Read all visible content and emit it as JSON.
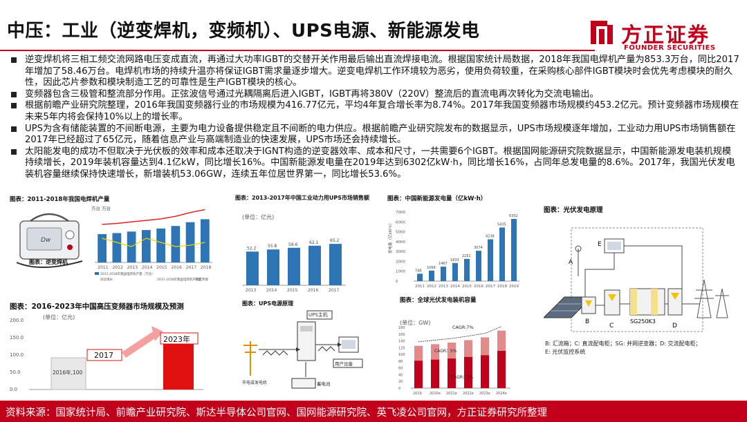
{
  "title": "中压：工业（逆变焊机，变频机）、UPS电源、新能源发电",
  "logo": {
    "cn": "方正证券",
    "en": "FOUNDER SECURITIES"
  },
  "bullets": [
    "逆变焊机将三相工频交流网路电压变成直流，再通过大功率IGBT的交替开关作用最后输出直流焊接电流。根据国家统计局数据，2018年我国电焊机产量为853.3万台，同比2017年增加了58.46万台。电焊机市场的持续升温亦将保证IGBT需求量逐步增大。逆变电焊机工作环境较为恶劣，使用负荷较重，在采购核心部件IGBT模块时会优先考虑模块的耐久性，因此芯片参数和模块制造工艺的可靠性是生产IGBT模块的核心。",
    "变频器包含三极管和整流部分作用。正弦波信号通过光耦隔离后进入IGBT，IGBT再将380V（220V）整流后的直流电再次转化为交流电输出。",
    "根据前瞻产业研究院整理，2016年我国变频器行业的市场规模为416.77亿元，平均4年复合增长率为8.74%。2017年我国变频器市场规模约453.2亿元。预计变频器市场规模在未来5年内将会保持10%以上的增长率。",
    "UPS为含有储能装置的不间断电源，主要为电力设备提供稳定且不间断的电力供应。根据前瞻产业研究院发布的数据显示，UPS市场规模逐年增加，工业动力用UPS市场销售额在2017年已经超过了65亿元，随着信息产业与高端制造业的快速发展，UPS市场还会持续增长。",
    "太阳能发电的成功不但取决于光伏板的效率和成本还取决于IGNT构造的逆变器效率、成本和尺寸，一共需要6个IGBT。根据国网能源研究院数据显示，中国新能源发电装机规模持续增长，2019年装机容量达到4.1亿kW，同比增长16%。中国新能源发电量在2019年达到6302亿kW·h，同比增长16%，占同年总发电量的8.6%。2017年，我国光伏发电装机容量继续保持快速增长，新增装机53.06GW，连续五年位居世界第一，同比增长53.6%。"
  ],
  "fig_welder": {
    "caption": "图表：2011-2018年我国电焊机产量",
    "photo_label": "图表：逆变焊机",
    "unit": "万台  万台",
    "legend": [
      "2011-2018年我国电焊机产量（万台）",
      "同比增长",
      "2011-2018年我国电焊机产量走势图",
      "产量"
    ],
    "years": [
      "2011",
      "2012",
      "2013",
      "2014",
      "2015",
      "2016",
      "2017",
      "2018"
    ],
    "values": [
      560,
      580,
      610,
      640,
      670,
      720,
      794.8,
      853.3
    ]
  },
  "fig_ups_market": {
    "caption": "图表：2013-2017年中国工业动力用UPS市场销售额",
    "unit": "(单位：亿元)",
    "categories": [
      "2013",
      "2014",
      "2015",
      "2016",
      "2017"
    ],
    "values": [
      52.2,
      55.8,
      58.6,
      62.1,
      65.2
    ]
  },
  "fig_newenergy": {
    "caption": "图表：中国新能源发电量（亿kW·h）",
    "ylabel": "发电量（亿kW·h）",
    "categories": [
      "2011",
      "2012",
      "2013",
      "2014",
      "2015",
      "2016",
      "2017",
      "2018",
      "2019"
    ],
    "values": [
      748,
      1066,
      1467,
      1833,
      2251,
      3074,
      4238,
      5435,
      6302
    ],
    "yticks": [
      "0",
      "1000",
      "2000",
      "3000",
      "4000",
      "5000",
      "6000",
      "7000"
    ]
  },
  "fig_pv": {
    "caption": "图表：光伏发电原理",
    "labels": {
      "A": "A",
      "B": "B",
      "C": "C",
      "D": "D",
      "E": "E",
      "sg": "SG250K3"
    },
    "legend_1": "B: 汇流箱；C: 直流配电柜；SG: 并网逆变器；D: 交流配电柜；",
    "legend_2": "E: 光伏监控系统"
  },
  "fig_hv_inverter": {
    "caption": "图表：2016-2023年中国高压变频器市场规模及预测",
    "unit": "(单位：亿元)",
    "yticks": [
      "200.0",
      "150.0",
      "100.0",
      "50.0",
      "0.0"
    ],
    "labels": [
      "2016年,100",
      "2017",
      "2023年"
    ]
  },
  "fig_ups_principle": {
    "caption": "图表：UPS电源原理",
    "labels": {
      "host": "UPS主机",
      "grid": "市电或发电机",
      "user": "用户设备",
      "battery": "蓄电池"
    }
  },
  "fig_pv_global": {
    "caption": "图表：全球光伏发电装机容量",
    "unit": "(单位：GW)",
    "cagr_top": "CAGR:7%",
    "cagr_mid": "CAGR：5%",
    "cagr_low": "CAGR：2%",
    "categories": [
      "2019",
      "2020e",
      "2021e",
      "2022e",
      "2023e",
      "2024e"
    ],
    "values": [
      125,
      130,
      135,
      142,
      150,
      170
    ],
    "yticks": [
      "180",
      "160",
      "140",
      "120",
      "100",
      "80",
      "60",
      "40",
      "20",
      "0"
    ]
  },
  "footer": "资料来源：国家统计局、前瞻产业研究院、斯达半导体公司官网、国网能源研究院、英飞凌公司官网，方正证券研究所整理",
  "colors": {
    "accent": "#c0001a",
    "bar_blue": "#2e75b6",
    "trend_red": "#e02020",
    "trend_yellow": "#f2d600"
  }
}
